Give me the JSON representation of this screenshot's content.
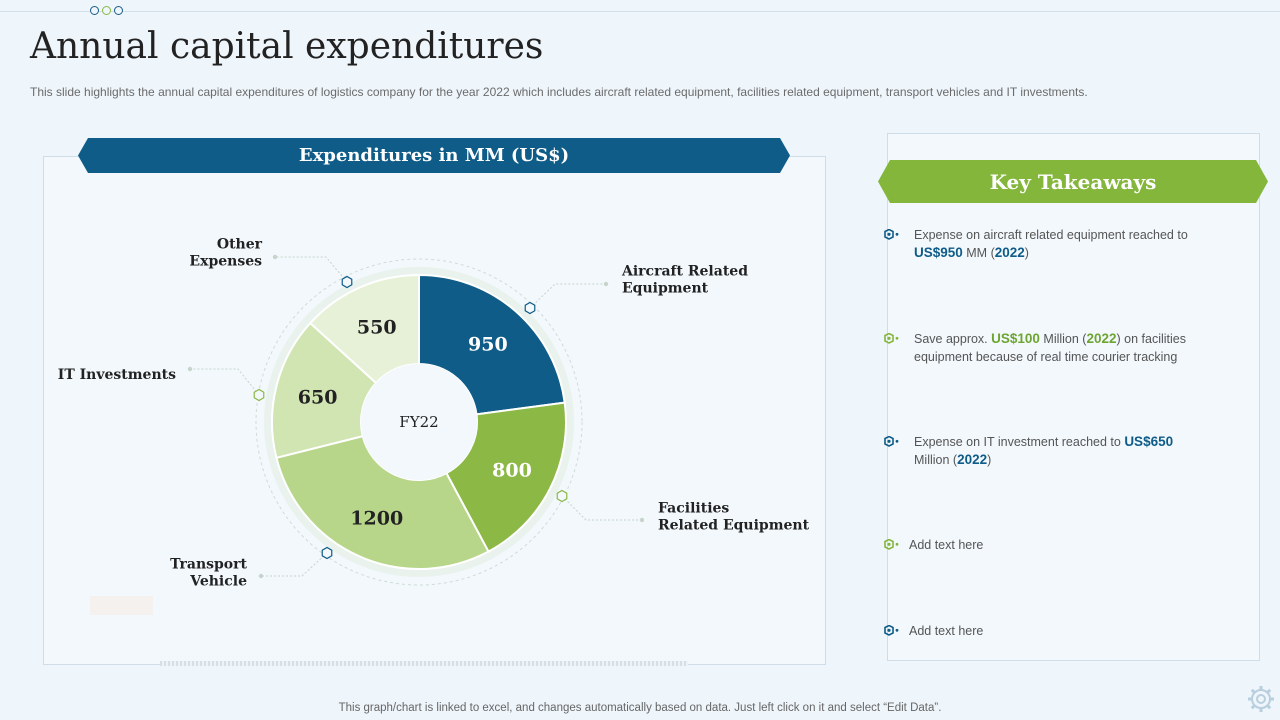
{
  "title": "Annual capital expenditures",
  "subtitle": "This slide highlights the annual capital expenditures of logistics company for the year 2022 which includes aircraft related equipment, facilities related equipment, transport vehicles and IT investments.",
  "chart_banner": "Expenditures in MM (US$)",
  "takeaways_banner": "Key Takeaways",
  "footer": "This graph/chart is linked to excel,  and changes automatically based on data. Just left click on it and select “Edit Data”.",
  "colors": {
    "aircraft": "#0f5c88",
    "facilities": "#8cb845",
    "transport": "#b8d68a",
    "it": "#d1e5b3",
    "other": "#e7f1d8",
    "accent_blue": "#0f5c88",
    "accent_green": "#84b63c"
  },
  "chart_data": {
    "type": "pie",
    "title": "Expenditures in MM (US$)",
    "center_label": "FY22",
    "categories": [
      "Aircraft Related Equipment",
      "Facilities Related Equipment",
      "Transport Vehicle",
      "IT Investments",
      "Other Expenses"
    ],
    "values": [
      950,
      800,
      1200,
      650,
      550
    ],
    "labels": [
      [
        "Aircraft Related",
        "Equipment"
      ],
      [
        "Facilities",
        "Related Equipment"
      ],
      [
        "Transport",
        "Vehicle"
      ],
      [
        "IT Investments"
      ],
      [
        "Other",
        "Expenses"
      ]
    ]
  },
  "takeaways": [
    {
      "segments": [
        {
          "t": "Expense on aircraft related equipment reached to ",
          "c": "n"
        },
        {
          "t": "US$950",
          "c": "b"
        },
        {
          "t": " MM (",
          "c": "n"
        },
        {
          "t": "2022",
          "c": "b"
        },
        {
          "t": ")",
          "c": "n"
        }
      ],
      "icon": "hexagon-blue-icon"
    },
    {
      "segments": [
        {
          "t": "Save approx. ",
          "c": "n"
        },
        {
          "t": "US$100",
          "c": "g"
        },
        {
          "t": " Million (",
          "c": "n"
        },
        {
          "t": "2022",
          "c": "g"
        },
        {
          "t": ") on facilities equipment because of real time courier tracking",
          "c": "n"
        }
      ],
      "icon": "hexagon-green-icon"
    },
    {
      "segments": [
        {
          "t": "Expense on IT investment reached to ",
          "c": "n"
        },
        {
          "t": "US$650",
          "c": "b"
        },
        {
          "t": " Million (",
          "c": "n"
        },
        {
          "t": "2022",
          "c": "b"
        },
        {
          "t": ")",
          "c": "n"
        }
      ],
      "icon": "hexagon-blue-icon"
    },
    {
      "segments": [
        {
          "t": "Add text here",
          "c": "n"
        }
      ],
      "icon": "hexagon-green-icon"
    },
    {
      "segments": [
        {
          "t": "Add text here",
          "c": "n"
        }
      ],
      "icon": "hexagon-blue-icon"
    }
  ]
}
